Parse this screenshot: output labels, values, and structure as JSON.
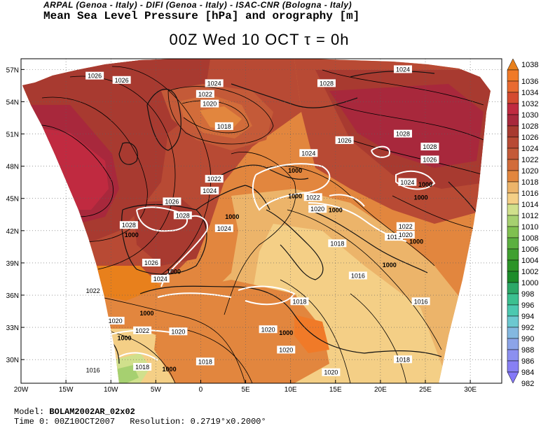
{
  "header": {
    "institutions": "ARPAL (Genoa - Italy)  -  DIFI (Genoa - Italy)  -  ISAC-CNR (Bologna - Italy)",
    "variable": "Mean Sea Level Pressure [hPa] and orography [m]",
    "title": "00Z Wed 10 OCT  τ = 0h"
  },
  "axes": {
    "lat_labels": [
      "57N",
      "54N",
      "51N",
      "48N",
      "45N",
      "42N",
      "39N",
      "36N",
      "33N",
      "30N"
    ],
    "lon_labels": [
      "20W",
      "15W",
      "10W",
      "5W",
      "0",
      "5E",
      "10E",
      "15E",
      "20E",
      "25E",
      "30E"
    ]
  },
  "colorbar": {
    "levels": [
      "1038",
      "1036",
      "1034",
      "1032",
      "1030",
      "1028",
      "1026",
      "1024",
      "1022",
      "1020",
      "1018",
      "1016",
      "1014",
      "1012",
      "1010",
      "1008",
      "1006",
      "1004",
      "1002",
      "1000",
      "998",
      "996",
      "994",
      "992",
      "990",
      "988",
      "986",
      "984",
      "982"
    ],
    "colors": [
      "#e8801c",
      "#f07a28",
      "#e86a30",
      "#d44a30",
      "#c02a40",
      "#a8283c",
      "#a83a30",
      "#b84a34",
      "#c45a38",
      "#d26c3a",
      "#e2863e",
      "#ecb46a",
      "#f4cf86",
      "#d0e08c",
      "#a6d070",
      "#80c050",
      "#5cb040",
      "#40a030",
      "#2c9428",
      "#1c8c2a",
      "#2ca868",
      "#3cc090",
      "#4cc8b0",
      "#6cc8d0",
      "#84b8e0",
      "#8ca4e8",
      "#8c90f0",
      "#8880f4",
      "#8478f8"
    ]
  },
  "isobar_labels": [
    {
      "text": "1024",
      "lon": 22.5,
      "lat": 56.8
    },
    {
      "text": "1026",
      "lon": -11.8,
      "lat": 56.2
    },
    {
      "text": "1026",
      "lon": -8.8,
      "lat": 55.8
    },
    {
      "text": "1024",
      "lon": 1.5,
      "lat": 55.5
    },
    {
      "text": "1022",
      "lon": 0.5,
      "lat": 54.5
    },
    {
      "text": "1020",
      "lon": 1.0,
      "lat": 53.6
    },
    {
      "text": "1028",
      "lon": 14.0,
      "lat": 55.5
    },
    {
      "text": "1018",
      "lon": 2.6,
      "lat": 51.5
    },
    {
      "text": "1026",
      "lon": 16.0,
      "lat": 50.2
    },
    {
      "text": "1028",
      "lon": 22.5,
      "lat": 50.8
    },
    {
      "text": "1028",
      "lon": 25.5,
      "lat": 49.6
    },
    {
      "text": "1024",
      "lon": 12.0,
      "lat": 49.0
    },
    {
      "text": "1026",
      "lon": 25.5,
      "lat": 48.4
    },
    {
      "text": "1022",
      "lon": 1.5,
      "lat": 46.6
    },
    {
      "text": "1000",
      "lon": 10.5,
      "lat": 47.4
    },
    {
      "text": "1024",
      "lon": 23.0,
      "lat": 46.3
    },
    {
      "text": "1000",
      "lon": 25.0,
      "lat": 46.1
    },
    {
      "text": "1024",
      "lon": 1.0,
      "lat": 45.5
    },
    {
      "text": "1000",
      "lon": 10.5,
      "lat": 45.0
    },
    {
      "text": "1022",
      "lon": 12.5,
      "lat": 44.9
    },
    {
      "text": "1000",
      "lon": 24.5,
      "lat": 44.9
    },
    {
      "text": "1026",
      "lon": -3.2,
      "lat": 44.5
    },
    {
      "text": "1020",
      "lon": 13.0,
      "lat": 43.8
    },
    {
      "text": "1000",
      "lon": 15.0,
      "lat": 43.7
    },
    {
      "text": "1028",
      "lon": -2.0,
      "lat": 43.2
    },
    {
      "text": "1000",
      "lon": 3.5,
      "lat": 43.1
    },
    {
      "text": "1028",
      "lon": -8.0,
      "lat": 42.3
    },
    {
      "text": "1024",
      "lon": 2.6,
      "lat": 42.0
    },
    {
      "text": "1000",
      "lon": -7.7,
      "lat": 41.4
    },
    {
      "text": "1022",
      "lon": 22.8,
      "lat": 42.2
    },
    {
      "text": "1018",
      "lon": 21.5,
      "lat": 41.2
    },
    {
      "text": "1020",
      "lon": 22.8,
      "lat": 41.4
    },
    {
      "text": "1000",
      "lon": 24.0,
      "lat": 40.8
    },
    {
      "text": "1018",
      "lon": 15.2,
      "lat": 40.6
    },
    {
      "text": "1026",
      "lon": -5.5,
      "lat": 38.8
    },
    {
      "text": "1000",
      "lon": -3.0,
      "lat": 38.0
    },
    {
      "text": "1000",
      "lon": 21.0,
      "lat": 38.6
    },
    {
      "text": "1024",
      "lon": -4.5,
      "lat": 37.3
    },
    {
      "text": "1016",
      "lon": 17.5,
      "lat": 37.6
    },
    {
      "text": "1022",
      "lon": -12.0,
      "lat": 36.2
    },
    {
      "text": "1018",
      "lon": 11.0,
      "lat": 35.2
    },
    {
      "text": "1016",
      "lon": 24.5,
      "lat": 35.2
    },
    {
      "text": "1000",
      "lon": -6.0,
      "lat": 34.1
    },
    {
      "text": "1020",
      "lon": -9.5,
      "lat": 33.4
    },
    {
      "text": "1022",
      "lon": -6.5,
      "lat": 32.5
    },
    {
      "text": "1020",
      "lon": -2.5,
      "lat": 32.4
    },
    {
      "text": "1020",
      "lon": 7.5,
      "lat": 32.6
    },
    {
      "text": "1000",
      "lon": 9.5,
      "lat": 32.3
    },
    {
      "text": "1000",
      "lon": -8.5,
      "lat": 31.8
    },
    {
      "text": "1020",
      "lon": 9.5,
      "lat": 30.7
    },
    {
      "text": "1018",
      "lon": 22.5,
      "lat": 29.8
    },
    {
      "text": "1018",
      "lon": 0.5,
      "lat": 29.6
    },
    {
      "text": "1018",
      "lon": -6.5,
      "lat": 29.1
    },
    {
      "text": "1000",
      "lon": -3.5,
      "lat": 28.9
    },
    {
      "text": "1016",
      "lon": -12.0,
      "lat": 28.8
    },
    {
      "text": "1020",
      "lon": 14.5,
      "lat": 28.6
    }
  ],
  "footer": {
    "model_label": "Model:",
    "model_value": "BOLAM2002AR_02x02",
    "time_label": "Time 0:",
    "time_value": "00Z10OCT2007",
    "resolution_label": "Resolution:",
    "resolution_value": "0.2719°x0.2000°"
  }
}
